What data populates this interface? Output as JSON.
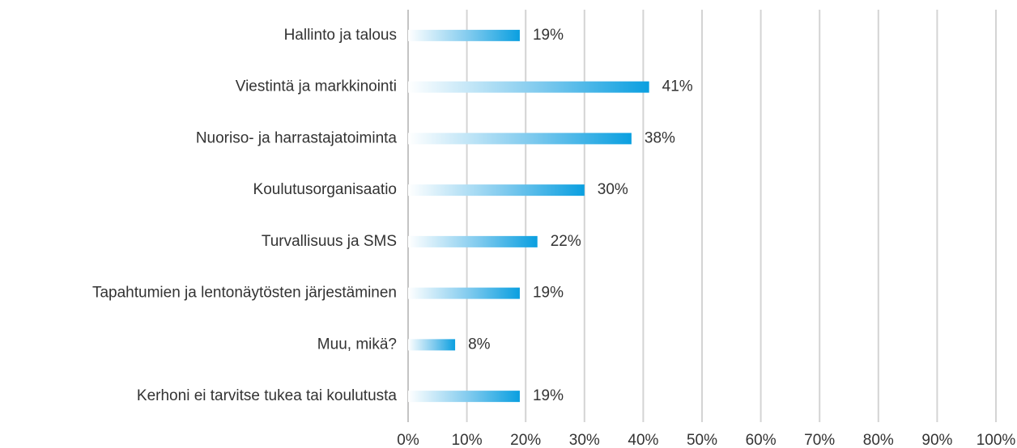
{
  "chart_data": {
    "type": "bar",
    "orientation": "horizontal",
    "categories": [
      "Hallinto ja talous",
      "Viestintä ja markkinointi",
      "Nuoriso- ja harrastajatoiminta",
      "Koulutusorganisaatio",
      "Turvallisuus ja SMS",
      "Tapahtumien ja lentonäytösten järjestäminen",
      "Muu, mikä?",
      "Kerhoni ei tarvitse tukea tai koulutusta"
    ],
    "values": [
      19,
      41,
      38,
      30,
      22,
      19,
      8,
      19
    ],
    "value_labels": [
      "19%",
      "41%",
      "38%",
      "30%",
      "22%",
      "19%",
      "8%",
      "19%"
    ],
    "color": "#0a9fe0",
    "xlim": [
      0,
      100
    ],
    "xticks": [
      {
        "value": 0,
        "label": "0%"
      },
      {
        "value": 10,
        "label": "10%"
      },
      {
        "value": 20,
        "label": "20%"
      },
      {
        "value": 30,
        "label": "30%"
      },
      {
        "value": 40,
        "label": "40%"
      },
      {
        "value": 50,
        "label": "50%"
      },
      {
        "value": 60,
        "label": "60%"
      },
      {
        "value": 70,
        "label": "70%"
      },
      {
        "value": 80,
        "label": "80%"
      },
      {
        "value": 90,
        "label": "90%"
      },
      {
        "value": 100,
        "label": "100%"
      }
    ],
    "grid": true
  }
}
